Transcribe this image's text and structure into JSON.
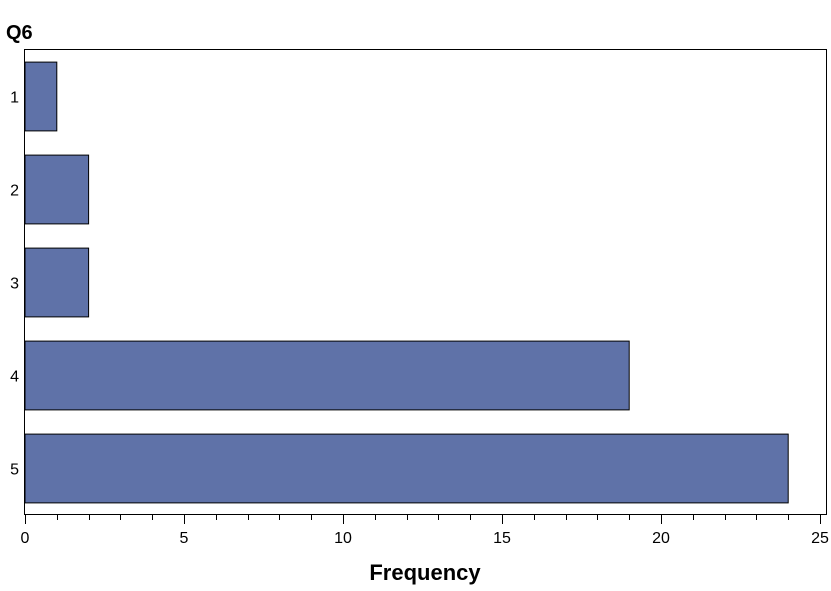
{
  "chart_data": {
    "type": "bar",
    "orientation": "horizontal",
    "title": "Q6",
    "xlabel": "Frequency",
    "ylabel": "",
    "categories": [
      "1",
      "2",
      "3",
      "4",
      "5"
    ],
    "values": [
      1,
      2,
      2,
      19,
      24
    ],
    "xlim": [
      0,
      25
    ],
    "major_ticks": [
      0,
      5,
      10,
      15,
      20,
      25
    ],
    "minor_tick_step": 1,
    "grid": false,
    "legend": "none",
    "colors": {
      "bar_fill": "#5f72a8",
      "bar_stroke": "#000000",
      "axis": "#000000"
    }
  }
}
